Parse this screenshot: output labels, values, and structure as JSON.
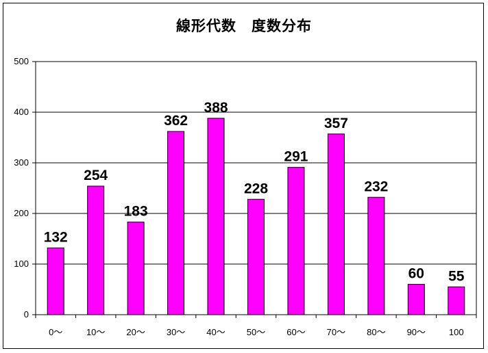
{
  "chart_data": {
    "type": "bar",
    "title": "線形代数　度数分布",
    "categories": [
      "0〜",
      "10〜",
      "20〜",
      "30〜",
      "40〜",
      "50〜",
      "60〜",
      "70〜",
      "80〜",
      "90〜",
      "100"
    ],
    "values": [
      132,
      254,
      183,
      362,
      388,
      228,
      291,
      357,
      232,
      60,
      55
    ],
    "ylim": [
      0,
      500
    ],
    "yticks": [
      0,
      100,
      200,
      300,
      400,
      500
    ],
    "grid": true,
    "bar_color": "#ff00ff",
    "xlabel": "",
    "ylabel": ""
  }
}
